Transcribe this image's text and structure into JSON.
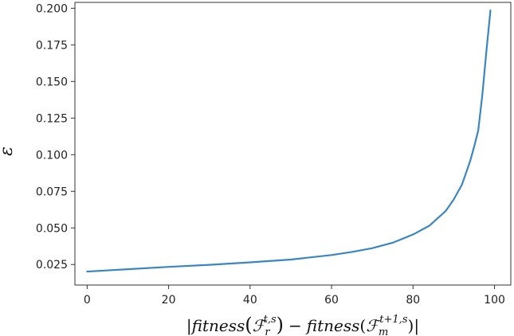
{
  "chart_data": {
    "type": "line",
    "title": "",
    "xlabel": "|fitness(ℱr t,s) − fitness(ℱm t+1,s)|",
    "xlabel_parts": {
      "open_bar": "|",
      "fitness1": "fitness",
      "paren_open1": "(",
      "script_f1": "ℱ",
      "sub1": "r",
      "sup1": "t,s",
      "paren_close1": ")",
      "minus": "−",
      "fitness2": "fitness",
      "paren_open2": "(",
      "script_f2": "ℱ",
      "sub2": "m",
      "sup2": "t+1,s",
      "paren_close2": ")",
      "close_bar": "|"
    },
    "ylabel": "ε",
    "xlim": [
      -3,
      104
    ],
    "ylim": [
      0.011,
      0.204
    ],
    "grid": false,
    "x_ticks": [
      0,
      20,
      40,
      60,
      80,
      100
    ],
    "x_tick_labels": [
      "0",
      "20",
      "40",
      "60",
      "80",
      "100"
    ],
    "y_ticks": [
      0.025,
      0.05,
      0.075,
      0.1,
      0.125,
      0.15,
      0.175,
      0.2
    ],
    "y_tick_labels": [
      "0.025",
      "0.050",
      "0.075",
      "0.100",
      "0.125",
      "0.150",
      "0.175",
      "0.200"
    ],
    "line_color": "#3a86c4",
    "series": [
      {
        "x": [
          0,
          10,
          20,
          30,
          40,
          50,
          60,
          65,
          70,
          75,
          80,
          84,
          88,
          90,
          92,
          94,
          95,
          96,
          97,
          98,
          99
        ],
        "y": [
          0.0202,
          0.0218,
          0.0234,
          0.0248,
          0.0265,
          0.0284,
          0.0315,
          0.0336,
          0.0362,
          0.0399,
          0.0455,
          0.0515,
          0.0615,
          0.0695,
          0.0795,
          0.0955,
          0.1055,
          0.1165,
          0.1405,
          0.1705,
          0.1985
        ]
      }
    ]
  }
}
